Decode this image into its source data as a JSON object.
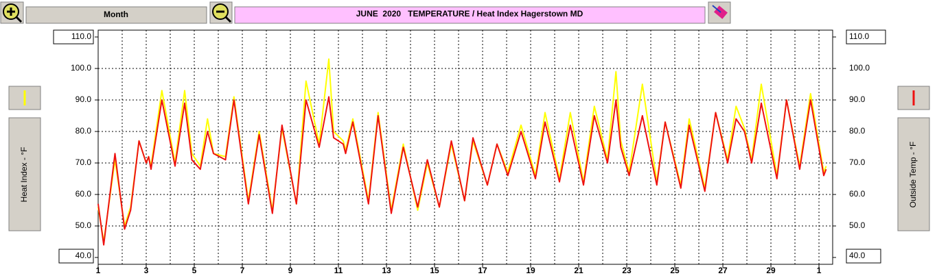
{
  "chart_data": {
    "type": "line",
    "toolbar": {
      "range": "Month"
    },
    "title": "JUNE  2020   TEMPERATURE / Heat Index Hagerstown MD",
    "y_label": "Heat Index - °F",
    "y2_label": "Outside Temp - °F",
    "xlim": [
      1,
      31.57
    ],
    "xticks": [
      1,
      3,
      5,
      7,
      9,
      11,
      13,
      15,
      17,
      19,
      21,
      23,
      25,
      27,
      29,
      {
        "value": 31,
        "label": "1"
      }
    ],
    "xminor": [
      2,
      4,
      6,
      8,
      10,
      12,
      14,
      16,
      18,
      20,
      22,
      24,
      26,
      28,
      30
    ],
    "ylim": [
      40,
      110
    ],
    "yticks": [
      {
        "value": 40,
        "label": "40.0"
      },
      {
        "value": 50,
        "label": "50.0"
      },
      {
        "value": 60,
        "label": "60.0"
      },
      {
        "value": 70,
        "label": "70.0"
      },
      {
        "value": 80,
        "label": "80.0"
      },
      {
        "value": 90,
        "label": "90.0"
      },
      {
        "value": 100,
        "label": "100.0"
      },
      {
        "value": 110,
        "label": "110.0"
      }
    ],
    "y2lim": [
      40,
      110
    ],
    "y2ticks": [
      {
        "value": 40,
        "label": "40.0"
      },
      {
        "value": 50,
        "label": "50.0"
      },
      {
        "value": 60,
        "label": "60.0"
      },
      {
        "value": 70,
        "label": "70.0"
      },
      {
        "value": 80,
        "label": "80.0"
      },
      {
        "value": 90,
        "label": "90.0"
      },
      {
        "value": 100,
        "label": "100.0"
      },
      {
        "value": 110,
        "label": "110.0"
      }
    ],
    "grid": true,
    "x": [
      1.0,
      1.23,
      1.7,
      2.1,
      2.35,
      2.7,
      3.0,
      3.1,
      3.2,
      3.65,
      4.2,
      4.6,
      4.9,
      5.25,
      5.55,
      5.8,
      6.3,
      6.65,
      7.25,
      7.7,
      8.25,
      8.65,
      9.25,
      9.65,
      10.2,
      10.6,
      10.8,
      11.2,
      11.3,
      11.6,
      12.25,
      12.65,
      13.2,
      13.7,
      14.3,
      14.7,
      15.2,
      15.7,
      16.25,
      16.6,
      17.2,
      17.6,
      18.05,
      18.6,
      19.2,
      19.6,
      20.2,
      20.65,
      21.2,
      21.65,
      22.2,
      22.55,
      22.75,
      23.1,
      23.65,
      24.25,
      24.6,
      25.25,
      25.6,
      26.25,
      26.7,
      27.2,
      27.55,
      27.9,
      28.2,
      28.6,
      29.25,
      29.65,
      30.2,
      30.65,
      31.2,
      31.3
    ],
    "series": [
      {
        "color": "#ffff00",
        "values": [
          56,
          45,
          71,
          50,
          56,
          77,
          70,
          72,
          69,
          93,
          70,
          93,
          73,
          69,
          84,
          73,
          72,
          91,
          58,
          80,
          55,
          81,
          57,
          96,
          76,
          103,
          80,
          77,
          74,
          84,
          58,
          86,
          55,
          76,
          55,
          70,
          56,
          76,
          58,
          77,
          63,
          76,
          67,
          82,
          66,
          86,
          65,
          86,
          64,
          88,
          71,
          99,
          77,
          67,
          95,
          64,
          83,
          63,
          84,
          62,
          86,
          71,
          88,
          81,
          71,
          95,
          66,
          90,
          69,
          92,
          67,
          69
        ]
      },
      {
        "color": "#ee1111",
        "axis": "y2",
        "values": [
          57,
          44,
          73,
          49,
          55,
          77,
          70,
          72,
          68,
          90,
          69,
          89,
          71,
          68,
          80,
          73,
          71,
          90,
          57,
          79,
          54,
          82,
          57,
          90,
          75,
          91,
          78,
          76,
          73,
          83,
          57,
          85,
          54,
          75,
          56,
          71,
          56,
          77,
          58,
          78,
          63,
          76,
          66,
          80,
          65,
          83,
          64,
          82,
          63,
          85,
          70,
          90,
          75,
          66,
          85,
          63,
          83,
          62,
          82,
          61,
          86,
          70,
          84,
          80,
          70,
          89,
          65,
          90,
          68,
          90,
          66,
          68
        ]
      }
    ]
  }
}
